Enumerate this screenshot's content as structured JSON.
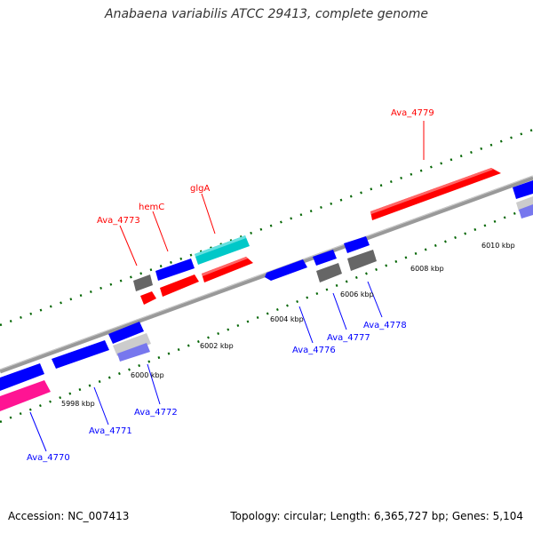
{
  "title": "Anabaena variabilis ATCC 29413, complete genome",
  "footer": {
    "accession": "Accession: NC_007413",
    "summary": "Topology: circular; Length: 6,365,727 bp; Genes: 5,104"
  },
  "colors": {
    "forward_gene": "#ff0000",
    "reverse_gene": "#0000ff",
    "rna_gene": "#00c8c8",
    "pseudo_gene": "#ff1493",
    "other_feature": "#666666",
    "backbone": "#999999",
    "tick": "#006400"
  },
  "scale_labels": [
    "5998 kbp",
    "6000 kbp",
    "6002 kbp",
    "6004 kbp",
    "6006 kbp",
    "6008 kbp",
    "6010 kbp"
  ],
  "gene_labels": [
    {
      "name": "Ava_4770",
      "strand": "reverse"
    },
    {
      "name": "Ava_4771",
      "strand": "reverse"
    },
    {
      "name": "Ava_4772",
      "strand": "reverse"
    },
    {
      "name": "Ava_4773",
      "strand": "forward"
    },
    {
      "name": "hemC",
      "strand": "forward"
    },
    {
      "name": "glgA",
      "strand": "forward"
    },
    {
      "name": "Ava_4776",
      "strand": "reverse"
    },
    {
      "name": "Ava_4777",
      "strand": "reverse"
    },
    {
      "name": "Ava_4778",
      "strand": "reverse"
    },
    {
      "name": "Ava_4779",
      "strand": "forward"
    }
  ]
}
